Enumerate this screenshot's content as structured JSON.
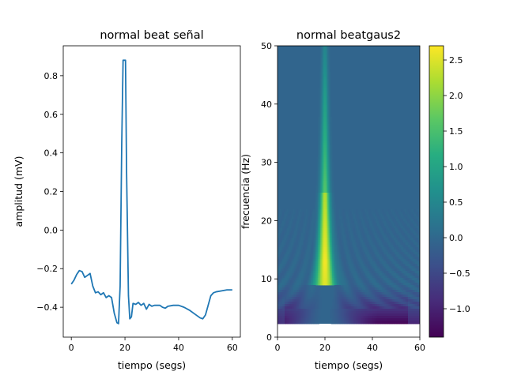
{
  "chart_data": [
    {
      "type": "line",
      "title": "normal beat señal",
      "xlabel": "tiempo (segs)",
      "ylabel": "amplitud (mV)",
      "xlim": [
        -3,
        63
      ],
      "ylim": [
        -0.555,
        0.955
      ],
      "xticks": [
        0,
        20,
        40,
        60
      ],
      "xtick_labels": [
        "0",
        "20",
        "40",
        "60"
      ],
      "yticks": [
        -0.4,
        -0.2,
        0.0,
        0.2,
        0.4,
        0.6,
        0.8
      ],
      "ytick_labels": [
        "−0.4",
        "−0.2",
        "0.0",
        "0.2",
        "0.4",
        "0.6",
        "0.8"
      ],
      "grid": false,
      "series": [
        {
          "color": "#1f77b4",
          "points": [
            [
              0,
              -0.28
            ],
            [
              1,
              -0.26
            ],
            [
              2,
              -0.23
            ],
            [
              3,
              -0.21
            ],
            [
              4,
              -0.215
            ],
            [
              5,
              -0.245
            ],
            [
              6,
              -0.235
            ],
            [
              7,
              -0.225
            ],
            [
              8,
              -0.29
            ],
            [
              9,
              -0.325
            ],
            [
              10,
              -0.32
            ],
            [
              11,
              -0.335
            ],
            [
              12,
              -0.325
            ],
            [
              13,
              -0.35
            ],
            [
              14,
              -0.34
            ],
            [
              15,
              -0.35
            ],
            [
              16,
              -0.43
            ],
            [
              17,
              -0.48
            ],
            [
              17.6,
              -0.485
            ],
            [
              18.2,
              -0.29
            ],
            [
              18.8,
              0.45
            ],
            [
              19.3,
              0.88
            ],
            [
              20.2,
              0.88
            ],
            [
              20.6,
              0.3
            ],
            [
              21.3,
              -0.34
            ],
            [
              21.8,
              -0.46
            ],
            [
              22.4,
              -0.45
            ],
            [
              23,
              -0.38
            ],
            [
              24,
              -0.385
            ],
            [
              25,
              -0.375
            ],
            [
              26,
              -0.39
            ],
            [
              27,
              -0.38
            ],
            [
              28,
              -0.41
            ],
            [
              29,
              -0.385
            ],
            [
              30,
              -0.395
            ],
            [
              31,
              -0.39
            ],
            [
              32,
              -0.39
            ],
            [
              33,
              -0.39
            ],
            [
              34,
              -0.4
            ],
            [
              35,
              -0.405
            ],
            [
              36,
              -0.395
            ],
            [
              38,
              -0.39
            ],
            [
              40,
              -0.39
            ],
            [
              42,
              -0.4
            ],
            [
              44,
              -0.415
            ],
            [
              46,
              -0.435
            ],
            [
              48,
              -0.455
            ],
            [
              49,
              -0.46
            ],
            [
              50,
              -0.44
            ],
            [
              51,
              -0.39
            ],
            [
              52,
              -0.34
            ],
            [
              53,
              -0.325
            ],
            [
              54,
              -0.32
            ],
            [
              56,
              -0.315
            ],
            [
              58,
              -0.31
            ],
            [
              60,
              -0.31
            ]
          ]
        }
      ]
    },
    {
      "type": "heatmap",
      "title": "normal beatgaus2",
      "xlabel": "tiempo (segs)",
      "ylabel": "frecuencia (Hz)",
      "xlim": [
        0,
        60
      ],
      "ylim": [
        0,
        50
      ],
      "xticks": [
        0,
        20,
        40,
        60
      ],
      "xtick_labels": [
        "0",
        "20",
        "40",
        "60"
      ],
      "yticks": [
        0,
        10,
        20,
        30,
        40,
        50
      ],
      "ytick_labels": [
        "0",
        "10",
        "20",
        "30",
        "40",
        "50"
      ],
      "freq_min": 2.3,
      "colormap": "viridis",
      "colorbar": {
        "vmin": -1.4,
        "vmax": 2.7,
        "ticks": [
          -1.0,
          -0.5,
          0.0,
          0.5,
          1.0,
          1.5,
          2.0,
          2.5
        ],
        "tick_labels": [
          "−1.0",
          "−0.5",
          "0.0",
          "0.5",
          "1.0",
          "1.5",
          "2.0",
          "2.5"
        ]
      },
      "background_value": -0.05,
      "grid": false
    }
  ]
}
